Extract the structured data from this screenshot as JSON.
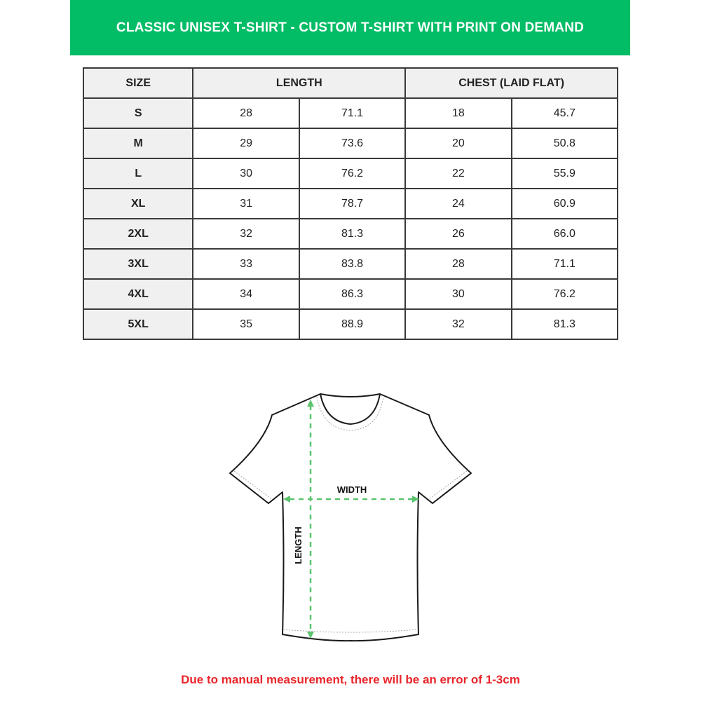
{
  "header": {
    "title": "CLASSIC UNISEX T-SHIRT - CUSTOM T-SHIRT WITH PRINT ON DEMAND"
  },
  "table": {
    "headers": [
      "SIZE",
      "LENGTH",
      "CHEST (LAID FLAT)"
    ],
    "rows": [
      [
        "S",
        "28",
        "71.1",
        "18",
        "45.7"
      ],
      [
        "M",
        "29",
        "73.6",
        "20",
        "50.8"
      ],
      [
        "L",
        "30",
        "76.2",
        "22",
        "55.9"
      ],
      [
        "XL",
        "31",
        "78.7",
        "24",
        "60.9"
      ],
      [
        "2XL",
        "32",
        "81.3",
        "26",
        "66.0"
      ],
      [
        "3XL",
        "33",
        "83.8",
        "28",
        "71.1"
      ],
      [
        "4XL",
        "34",
        "86.3",
        "30",
        "76.2"
      ],
      [
        "5XL",
        "35",
        "88.9",
        "32",
        "81.3"
      ]
    ]
  },
  "diagram": {
    "width_label": "WIDTH",
    "length_label": "LENGTH",
    "arrow_color": "#5cc46e"
  },
  "footer": {
    "note": "Due to manual measurement, there will be an error of 1-3cm"
  },
  "colors": {
    "banner": "#02bc66",
    "note": "#e8262b"
  }
}
